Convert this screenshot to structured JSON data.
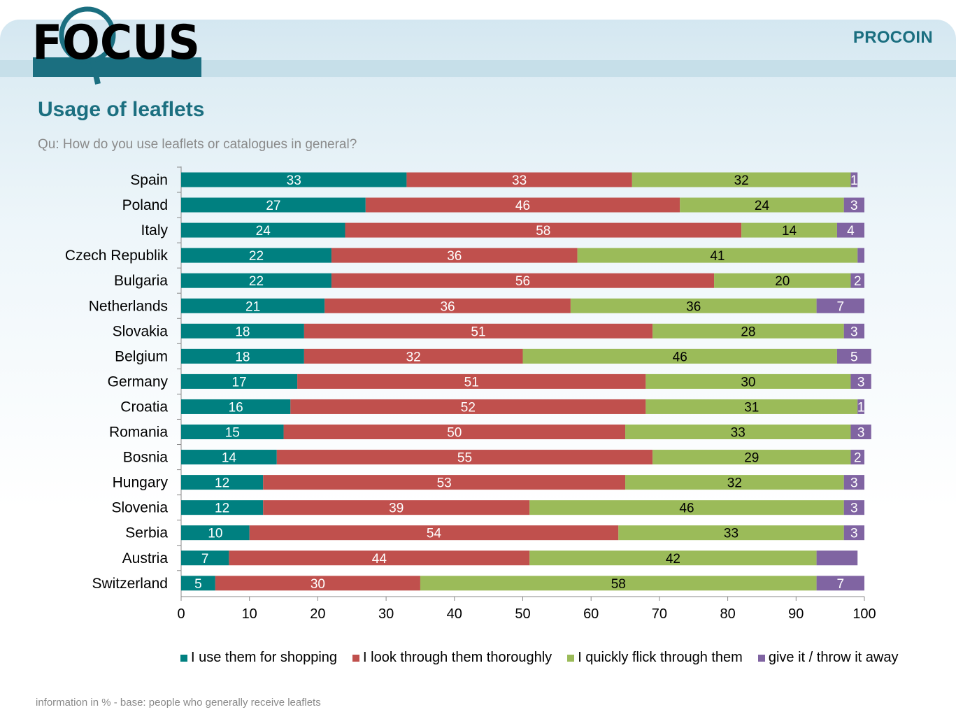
{
  "header": {
    "logo_text": "FOCUS",
    "brand": "PROCOIN"
  },
  "title": "Usage of leaflets",
  "subtitle": "Qu: How do you use leaflets or catalogues in general?",
  "footnote": "information in %  - base: people who generally receive leaflets",
  "colors": {
    "accent": "#1b6f80",
    "shopping": "#008080",
    "thoroughly": "#c0504d",
    "flick": "#9bbb59",
    "giveaway": "#8064a2"
  },
  "chart_data": {
    "type": "bar",
    "orientation": "horizontal",
    "stacked": true,
    "categories": [
      "Spain",
      "Poland",
      "Italy",
      "Czech Republik",
      "Bulgaria",
      "Netherlands",
      "Slovakia",
      "Belgium",
      "Germany",
      "Croatia",
      "Romania",
      "Bosnia",
      "Hungary",
      "Slovenia",
      "Serbia",
      "Austria",
      "Switzerland"
    ],
    "series": [
      {
        "name": "I use them for shopping",
        "color": "#008080",
        "label_color": "#ffffff",
        "values": [
          33,
          27,
          24,
          22,
          22,
          21,
          18,
          18,
          17,
          16,
          15,
          14,
          12,
          12,
          10,
          7,
          5
        ],
        "labels": [
          "33",
          "27",
          "24",
          "22",
          "22",
          "21",
          "18",
          "18",
          "17",
          "16",
          "15",
          "14",
          "12",
          "12",
          "10",
          "7",
          "5"
        ]
      },
      {
        "name": "I look through them thoroughly",
        "color": "#c0504d",
        "label_color": "#ffffff",
        "values": [
          33,
          46,
          58,
          36,
          56,
          36,
          51,
          32,
          51,
          52,
          50,
          55,
          53,
          39,
          54,
          44,
          30
        ],
        "labels": [
          "33",
          "46",
          "58",
          "36",
          "56",
          "36",
          "51",
          "32",
          "51",
          "52",
          "50",
          "55",
          "53",
          "39",
          "54",
          "44",
          "30"
        ]
      },
      {
        "name": "I quickly flick through them",
        "color": "#9bbb59",
        "label_color": "#000000",
        "values": [
          32,
          24,
          14,
          41,
          20,
          36,
          28,
          46,
          30,
          31,
          33,
          29,
          32,
          46,
          33,
          42,
          58
        ],
        "labels": [
          "32",
          "24",
          "14",
          "41",
          "20",
          "36",
          "28",
          "46",
          "30",
          "31",
          "33",
          "29",
          "32",
          "46",
          "33",
          "42",
          "58"
        ]
      },
      {
        "name": "give it / throw it away",
        "color": "#8064a2",
        "label_color": "#ffffff",
        "values": [
          1,
          3,
          4,
          1,
          2,
          7,
          3,
          5,
          3,
          1,
          3,
          2,
          3,
          3,
          3,
          6,
          7
        ],
        "labels": [
          "1",
          "3",
          "4",
          "",
          "2",
          "7",
          "3",
          "5",
          "3",
          "1",
          "3",
          "2",
          "3",
          "3",
          "3",
          "",
          "7"
        ]
      }
    ],
    "xlim": [
      0,
      100
    ],
    "xticks": [
      "0",
      "10",
      "20",
      "30",
      "40",
      "50",
      "60",
      "70",
      "80",
      "90",
      "100"
    ],
    "grid": false,
    "legend_position": "bottom"
  }
}
